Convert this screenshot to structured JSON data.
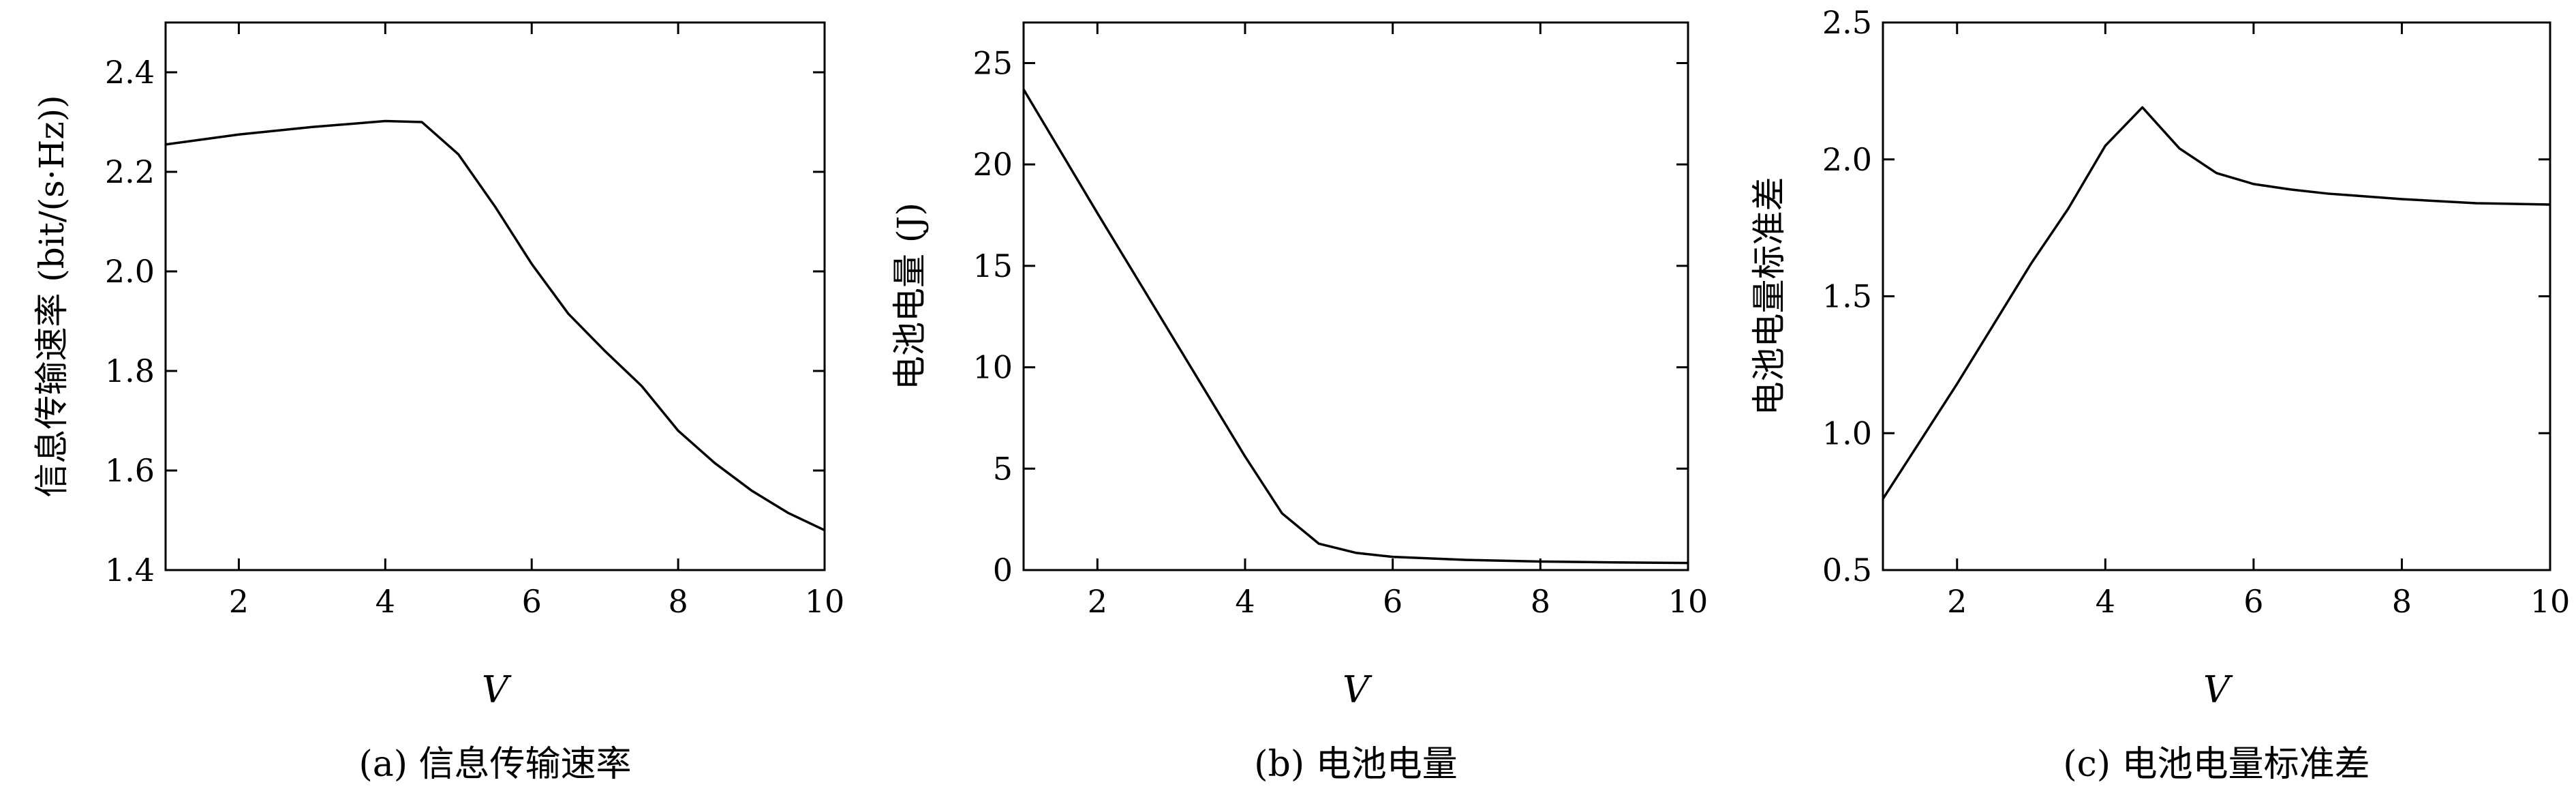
{
  "chart_data": [
    {
      "type": "line",
      "caption": "(a) 信息传输速率",
      "xlabel": "V",
      "ylabel": "信息传输速率 (bit/(s·Hz))",
      "xlim": [
        1,
        10
      ],
      "ylim": [
        1.4,
        2.5
      ],
      "xticks": [
        "2",
        "4",
        "6",
        "8",
        "10"
      ],
      "yticks": [
        "1.4",
        "1.6",
        "1.8",
        "2.0",
        "2.2",
        "2.4"
      ],
      "x": [
        1,
        2,
        3,
        4,
        4.5,
        5,
        5.5,
        6,
        6.5,
        7,
        7.5,
        8,
        8.5,
        9,
        9.5,
        10
      ],
      "series": [
        {
          "values": [
            2.255,
            2.275,
            2.29,
            2.302,
            2.3,
            2.235,
            2.13,
            2.015,
            1.915,
            1.84,
            1.77,
            1.68,
            1.615,
            1.56,
            1.515,
            1.48
          ]
        }
      ]
    },
    {
      "type": "line",
      "caption": "(b) 电池电量",
      "xlabel": "V",
      "ylabel": "电池电量 (J)",
      "xlim": [
        1,
        10
      ],
      "ylim": [
        0,
        27
      ],
      "xticks": [
        "2",
        "4",
        "6",
        "8",
        "10"
      ],
      "yticks": [
        "0",
        "5",
        "10",
        "15",
        "20",
        "25"
      ],
      "x": [
        1,
        2,
        3,
        4,
        4.5,
        5,
        5.5,
        6,
        7,
        8,
        9,
        10
      ],
      "series": [
        {
          "values": [
            23.7,
            17.6,
            11.6,
            5.6,
            2.8,
            1.3,
            0.85,
            0.65,
            0.5,
            0.42,
            0.38,
            0.35
          ]
        }
      ]
    },
    {
      "type": "line",
      "caption": "(c) 电池电量标准差",
      "xlabel": "V",
      "ylabel": "电池电量标准差",
      "xlim": [
        1,
        10
      ],
      "ylim": [
        0.5,
        2.5
      ],
      "xticks": [
        "2",
        "4",
        "6",
        "8",
        "10"
      ],
      "yticks": [
        "0.5",
        "1.0",
        "1.5",
        "2.0",
        "2.5"
      ],
      "x": [
        1,
        1.5,
        2,
        2.5,
        3,
        3.5,
        4,
        4.5,
        5,
        5.5,
        6,
        6.5,
        7,
        8,
        9,
        10
      ],
      "series": [
        {
          "values": [
            0.76,
            0.97,
            1.18,
            1.4,
            1.62,
            1.82,
            2.05,
            2.19,
            2.04,
            1.95,
            1.91,
            1.89,
            1.875,
            1.855,
            1.84,
            1.835
          ]
        }
      ]
    }
  ]
}
